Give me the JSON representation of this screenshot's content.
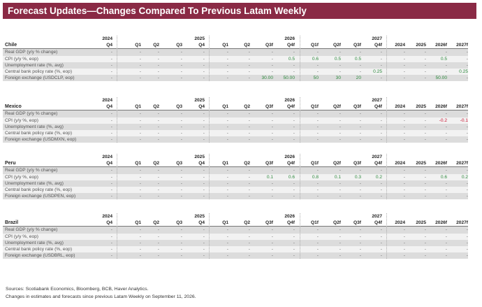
{
  "title": "Forecast Updates—Changes Compared To Previous Latam Weekly",
  "years": [
    "2024",
    "2025",
    "2026",
    "2027"
  ],
  "columns": [
    "Q4",
    "Q1",
    "Q2",
    "Q3",
    "Q4",
    "Q1",
    "Q2",
    "Q3f",
    "Q4f",
    "Q1f",
    "Q2f",
    "Q3f",
    "Q4f",
    "2024",
    "2025",
    "2026f",
    "2027f"
  ],
  "sections": [
    {
      "country": "Chile",
      "rows": [
        {
          "label": "Real GDP (y/y % change)",
          "values": [
            "-",
            "-",
            "-",
            "-",
            "-",
            "-",
            "-",
            "-",
            "-",
            "-",
            "-",
            "-",
            "-",
            "-",
            "-",
            "-",
            "-"
          ]
        },
        {
          "label": "CPI (y/y %, eop)",
          "values": [
            "-",
            "-",
            "-",
            "-",
            "-",
            "-",
            "-",
            "-",
            "0.5",
            "0.6",
            "0.5",
            "0.5",
            "-",
            "-",
            "-",
            "0.5",
            "-"
          ]
        },
        {
          "label": "Unemployment rate (%, avg)",
          "values": [
            "-",
            "-",
            "-",
            "-",
            "-",
            "-",
            "-",
            "-",
            "-",
            "-",
            "-",
            "-",
            "-",
            "-",
            "-",
            "-",
            "-"
          ]
        },
        {
          "label": "Central bank policy rate (%, eop)",
          "values": [
            "-",
            "-",
            "-",
            "-",
            "-",
            "-",
            "-",
            "-",
            "-",
            "-",
            "-",
            "-",
            "0.25",
            "-",
            "-",
            "-",
            "0.25"
          ]
        },
        {
          "label": "Foreign exchange (USDCLP, eop)",
          "values": [
            "-",
            "-",
            "-",
            "-",
            "-",
            "-",
            "-",
            "30.00",
            "50.00",
            "50",
            "30",
            "20",
            "-",
            "-",
            "-",
            "50.00",
            "-"
          ]
        }
      ]
    },
    {
      "country": "Mexico",
      "rows": [
        {
          "label": "Real GDP (y/y % change)",
          "values": [
            "-",
            "-",
            "-",
            "-",
            "-",
            "-",
            "-",
            "-",
            "-",
            "-",
            "-",
            "-",
            "-",
            "-",
            "-",
            "-",
            "-"
          ]
        },
        {
          "label": "CPI (y/y %, eop)",
          "values": [
            "-",
            "-",
            "-",
            "-",
            "-",
            "-",
            "-",
            "-",
            "-",
            "-",
            "-",
            "-",
            "-",
            "-",
            "-",
            "-0.2",
            "-0.1"
          ]
        },
        {
          "label": "Unemployment rate (%, avg)",
          "values": [
            "-",
            "-",
            "-",
            "-",
            "-",
            "-",
            "-",
            "-",
            "-",
            "-",
            "-",
            "-",
            "-",
            "-",
            "-",
            "-",
            "-"
          ]
        },
        {
          "label": "Central bank policy rate (%, eop)",
          "values": [
            "-",
            "-",
            "-",
            "-",
            "-",
            "-",
            "-",
            "-",
            "-",
            "-",
            "-",
            "-",
            "-",
            "-",
            "-",
            "-",
            "-"
          ]
        },
        {
          "label": "Foreign exchange (USDMXN, eop)",
          "values": [
            "-",
            "-",
            "-",
            "-",
            "-",
            "-",
            "-",
            "-",
            "-",
            "-",
            "-",
            "-",
            "-",
            "-",
            "-",
            "-",
            "-"
          ]
        }
      ]
    },
    {
      "country": "Peru",
      "rows": [
        {
          "label": "Real GDP (y/y % change)",
          "values": [
            "-",
            "-",
            "-",
            "-",
            "-",
            "-",
            "-",
            "-",
            "-",
            "-",
            "-",
            "-",
            "-",
            "-",
            "-",
            "-",
            "-"
          ]
        },
        {
          "label": "CPI (y/y %, eop)",
          "values": [
            "-",
            "-",
            "-",
            "-",
            "-",
            "-",
            "-",
            "0.1",
            "0.6",
            "0.8",
            "0.1",
            "0.3",
            "0.2",
            "-",
            "-",
            "0.6",
            "0.2"
          ]
        },
        {
          "label": "Unemployment rate (%, avg)",
          "values": [
            "-",
            "-",
            "-",
            "-",
            "-",
            "-",
            "-",
            "-",
            "-",
            "-",
            "-",
            "-",
            "-",
            "-",
            "-",
            "-",
            "-"
          ]
        },
        {
          "label": "Central bank policy rate (%, eop)",
          "values": [
            "-",
            "-",
            "-",
            "-",
            "-",
            "-",
            "-",
            "-",
            "-",
            "-",
            "-",
            "-",
            "-",
            "-",
            "-",
            "-",
            "-"
          ]
        },
        {
          "label": "Foreign exchange (USDPEN, eop)",
          "values": [
            "-",
            "-",
            "-",
            "-",
            "-",
            "-",
            "-",
            "-",
            "-",
            "-",
            "-",
            "-",
            "-",
            "-",
            "-",
            "-",
            "-"
          ]
        }
      ]
    },
    {
      "country": "Brazil",
      "rows": [
        {
          "label": "Real GDP (y/y % change)",
          "values": [
            "-",
            "-",
            "-",
            "-",
            "-",
            "-",
            "-",
            "-",
            "-",
            "-",
            "-",
            "-",
            "-",
            "-",
            "-",
            "-",
            "-"
          ]
        },
        {
          "label": "CPI (y/y %, eop)",
          "values": [
            "-",
            "-",
            "-",
            "-",
            "-",
            "-",
            "-",
            "-",
            "-",
            "-",
            "-",
            "-",
            "-",
            "-",
            "-",
            "-",
            "-"
          ]
        },
        {
          "label": "Unemployment rate (%, avg)",
          "values": [
            "-",
            "-",
            "-",
            "-",
            "-",
            "-",
            "-",
            "-",
            "-",
            "-",
            "-",
            "-",
            "-",
            "-",
            "-",
            "-",
            "-"
          ]
        },
        {
          "label": "Central bank policy rate (%, eop)",
          "values": [
            "-",
            "-",
            "-",
            "-",
            "-",
            "-",
            "-",
            "-",
            "-",
            "-",
            "-",
            "-",
            "-",
            "-",
            "-",
            "-",
            "-"
          ]
        },
        {
          "label": "Foreign exchange (USDBRL, eop)",
          "values": [
            "-",
            "-",
            "-",
            "-",
            "-",
            "-",
            "-",
            "-",
            "-",
            "-",
            "-",
            "-",
            "-",
            "-",
            "-",
            "-",
            "-"
          ]
        }
      ]
    }
  ],
  "footer": {
    "sources": "Sources: Scotiabank Economics, Bloomberg, BCB, Haver Analytics.",
    "note": "Changes in estimates and forecasts since previous Latam Weekly on September 11, 2026."
  },
  "colors": {
    "banner": "#8a2a45",
    "positive": "#2e8a3e",
    "negative": "#c8102e"
  }
}
